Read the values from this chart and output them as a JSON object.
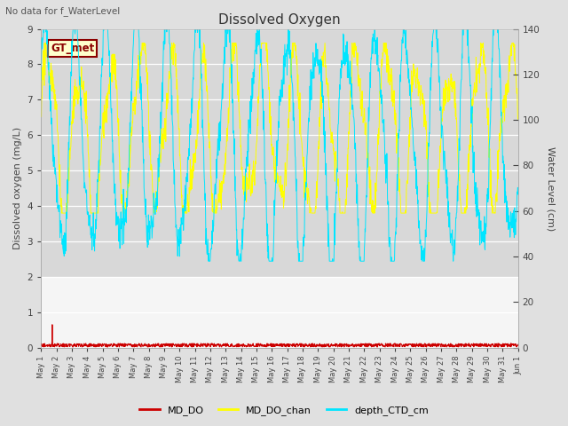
{
  "title": "Dissolved Oxygen",
  "top_left_text": "No data for f_WaterLevel",
  "annotation_text": "GT_met",
  "ylabel_left": "Dissolved oxygen (mg/L)",
  "ylabel_right": "Water Level (cm)",
  "ylim_left": [
    0.0,
    9.0
  ],
  "ylim_right": [
    0,
    140
  ],
  "yticks_left": [
    0.0,
    1.0,
    2.0,
    3.0,
    4.0,
    5.0,
    6.0,
    7.0,
    8.0,
    9.0
  ],
  "yticks_right": [
    0,
    20,
    40,
    60,
    80,
    100,
    120,
    140
  ],
  "shaded_region_upper": [
    2.0,
    9.0
  ],
  "color_MD_DO": "#cc0000",
  "color_MD_DO_chan": "#ffff00",
  "color_depth_CTD_cm": "#00e5ff",
  "bg_color": "#e0e0e0",
  "plot_bg_color": "#f5f5f5",
  "shaded_color": "#d8d8d8",
  "legend_labels": [
    "MD_DO",
    "MD_DO_chan",
    "depth_CTD_cm"
  ],
  "x_tick_labels": [
    "May 1",
    "May 10",
    "May 19",
    "May 20",
    "May 21",
    "May 22",
    "May 23",
    "May 24",
    "May 25",
    "May 26",
    "May 27",
    "May 28",
    "May 29",
    "May 30",
    "May 31",
    "Jun 1"
  ],
  "seed": 42
}
